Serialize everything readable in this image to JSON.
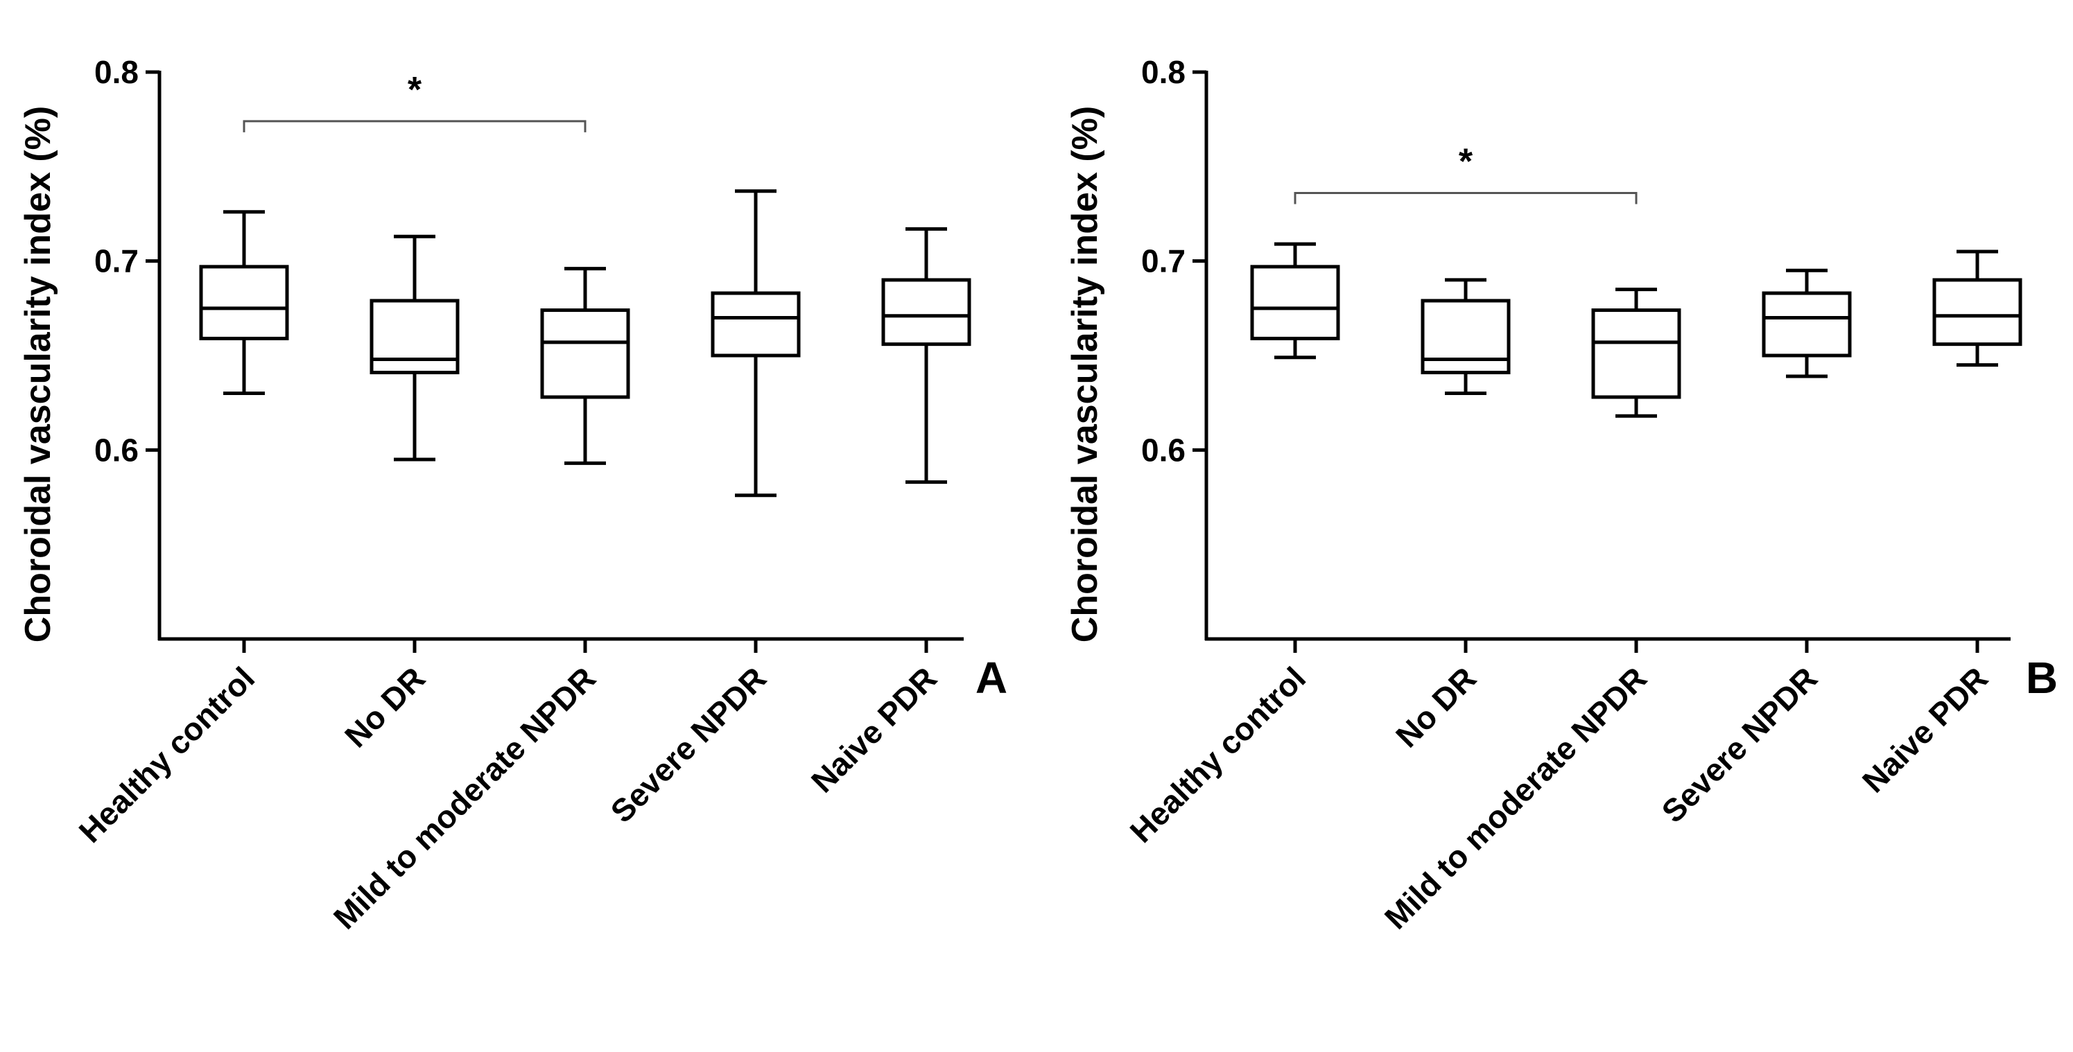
{
  "chart_data": [
    {
      "type": "box",
      "panel_label": "A",
      "ylabel": "Choroidal vascularity index (%)",
      "ylim": [
        0.5,
        0.8
      ],
      "yticks": [
        0.6,
        0.7,
        0.8
      ],
      "ytick_labels": [
        "0.6",
        "0.7",
        "0.8"
      ],
      "categories": [
        "Healthy control",
        "No DR",
        "Mild to moderate NPDR",
        "Severe NPDR",
        "Naive PDR"
      ],
      "boxes": [
        {
          "min": 0.63,
          "q1": 0.659,
          "median": 0.675,
          "q3": 0.697,
          "max": 0.726
        },
        {
          "min": 0.595,
          "q1": 0.641,
          "median": 0.648,
          "q3": 0.679,
          "max": 0.713
        },
        {
          "min": 0.593,
          "q1": 0.628,
          "median": 0.657,
          "q3": 0.674,
          "max": 0.696
        },
        {
          "min": 0.576,
          "q1": 0.65,
          "median": 0.67,
          "q3": 0.683,
          "max": 0.737
        },
        {
          "min": 0.583,
          "q1": 0.656,
          "median": 0.671,
          "q3": 0.69,
          "max": 0.717
        }
      ],
      "significance": {
        "from": 0,
        "to": 2,
        "level": 0.774,
        "symbol": "*"
      }
    },
    {
      "type": "box",
      "panel_label": "B",
      "ylabel": "Choroidal vascularity index (%)",
      "ylim": [
        0.5,
        0.8
      ],
      "yticks": [
        0.6,
        0.7,
        0.8
      ],
      "ytick_labels": [
        "0.6",
        "0.7",
        "0.8"
      ],
      "categories": [
        "Healthy control",
        "No DR",
        "Mild to moderate NPDR",
        "Severe NPDR",
        "Naive PDR"
      ],
      "boxes": [
        {
          "min": 0.649,
          "q1": 0.659,
          "median": 0.675,
          "q3": 0.697,
          "max": 0.709
        },
        {
          "min": 0.63,
          "q1": 0.641,
          "median": 0.648,
          "q3": 0.679,
          "max": 0.69
        },
        {
          "min": 0.618,
          "q1": 0.628,
          "median": 0.657,
          "q3": 0.674,
          "max": 0.685
        },
        {
          "min": 0.639,
          "q1": 0.65,
          "median": 0.67,
          "q3": 0.683,
          "max": 0.695
        },
        {
          "min": 0.645,
          "q1": 0.656,
          "median": 0.671,
          "q3": 0.69,
          "max": 0.705
        }
      ],
      "significance": {
        "from": 0,
        "to": 2,
        "level": 0.736,
        "symbol": "*"
      }
    }
  ]
}
